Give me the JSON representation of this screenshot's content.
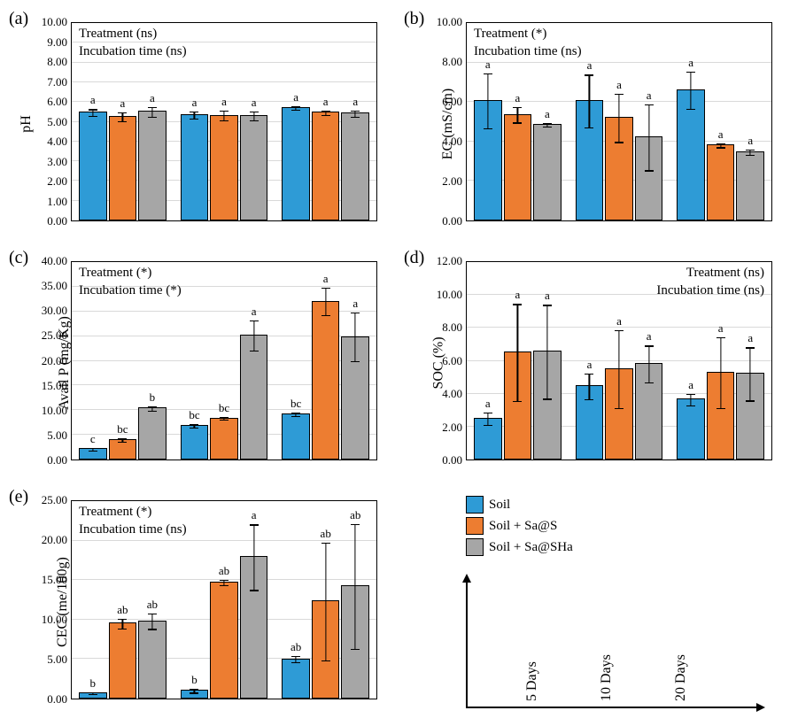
{
  "colors": {
    "soil": "#2e9bd6",
    "sas": "#ed7d31",
    "sasha": "#a6a6a6",
    "grid": "#d9d9d9",
    "bg": "#ffffff"
  },
  "legend": {
    "items": [
      {
        "label": "Soil",
        "color": "#2e9bd6"
      },
      {
        "label": "Soil + Sa@S",
        "color": "#ed7d31"
      },
      {
        "label": "Soil + Sa@SHa",
        "color": "#a6a6a6"
      }
    ],
    "xlabels": [
      "5 Days",
      "10 Days",
      "20 Days"
    ]
  },
  "panels": [
    {
      "id": "a",
      "label": "(a)",
      "ylabel": "pH",
      "ymin": 0,
      "ymax": 10,
      "ystep": 1,
      "decimals": 2,
      "treatment": "Treatment (ns)",
      "incub": "Incubation time (ns)",
      "anno_pos": "left",
      "groups": [
        [
          {
            "v": 5.5,
            "e": 0.18,
            "s": "a",
            "c": "#2e9bd6"
          },
          {
            "v": 5.3,
            "e": 0.22,
            "s": "a",
            "c": "#ed7d31"
          },
          {
            "v": 5.55,
            "e": 0.25,
            "s": "a",
            "c": "#a6a6a6"
          }
        ],
        [
          {
            "v": 5.4,
            "e": 0.18,
            "s": "a",
            "c": "#2e9bd6"
          },
          {
            "v": 5.35,
            "e": 0.25,
            "s": "a",
            "c": "#ed7d31"
          },
          {
            "v": 5.35,
            "e": 0.22,
            "s": "a",
            "c": "#a6a6a6"
          }
        ],
        [
          {
            "v": 5.75,
            "e": 0.1,
            "s": "a",
            "c": "#2e9bd6"
          },
          {
            "v": 5.5,
            "e": 0.12,
            "s": "a",
            "c": "#ed7d31"
          },
          {
            "v": 5.45,
            "e": 0.15,
            "s": "a",
            "c": "#a6a6a6"
          }
        ]
      ]
    },
    {
      "id": "b",
      "label": "(b)",
      "ylabel": "EC (mS/cm)",
      "ymin": 0,
      "ymax": 10,
      "ystep": 2,
      "decimals": 2,
      "treatment": "Treatment (*)",
      "incub": "Incubation time (ns)",
      "anno_pos": "left",
      "groups": [
        [
          {
            "v": 6.1,
            "e": 1.4,
            "s": "a",
            "c": "#2e9bd6"
          },
          {
            "v": 5.4,
            "e": 0.4,
            "s": "a",
            "c": "#ed7d31"
          },
          {
            "v": 4.9,
            "e": 0.1,
            "s": "a",
            "c": "#a6a6a6"
          }
        ],
        [
          {
            "v": 6.1,
            "e": 1.35,
            "s": "a",
            "c": "#2e9bd6"
          },
          {
            "v": 5.25,
            "e": 1.25,
            "s": "a",
            "c": "#ed7d31"
          },
          {
            "v": 4.25,
            "e": 1.7,
            "s": "a",
            "c": "#a6a6a6"
          }
        ],
        [
          {
            "v": 6.65,
            "e": 0.95,
            "s": "a",
            "c": "#2e9bd6"
          },
          {
            "v": 3.85,
            "e": 0.1,
            "s": "a",
            "c": "#ed7d31"
          },
          {
            "v": 3.5,
            "e": 0.15,
            "s": "a",
            "c": "#a6a6a6"
          }
        ]
      ]
    },
    {
      "id": "c",
      "label": "(c)",
      "ylabel": "Avail P (mg/Kg)",
      "ymin": 0,
      "ymax": 40,
      "ystep": 5,
      "decimals": 2,
      "treatment": "Treatment (*)",
      "incub": "Incubation time (*)",
      "anno_pos": "left",
      "groups": [
        [
          {
            "v": 2.3,
            "e": 0.3,
            "s": "c",
            "c": "#2e9bd6"
          },
          {
            "v": 4.2,
            "e": 0.4,
            "s": "bc",
            "c": "#ed7d31"
          },
          {
            "v": 10.5,
            "e": 0.5,
            "s": "b",
            "c": "#a6a6a6"
          }
        ],
        [
          {
            "v": 7.0,
            "e": 0.3,
            "s": "bc",
            "c": "#2e9bd6"
          },
          {
            "v": 8.5,
            "e": 0.3,
            "s": "bc",
            "c": "#ed7d31"
          },
          {
            "v": 25.3,
            "e": 3.1,
            "s": "a",
            "c": "#a6a6a6"
          }
        ],
        [
          {
            "v": 9.3,
            "e": 0.35,
            "s": "bc",
            "c": "#2e9bd6"
          },
          {
            "v": 32.2,
            "e": 2.8,
            "s": "a",
            "c": "#ed7d31"
          },
          {
            "v": 25.0,
            "e": 5.0,
            "s": "a",
            "c": "#a6a6a6"
          }
        ]
      ]
    },
    {
      "id": "d",
      "label": "(d)",
      "ylabel": "SOC (%)",
      "ymin": 0,
      "ymax": 12,
      "ystep": 2,
      "decimals": 2,
      "treatment": "Treatment (ns)",
      "incub": "Incubation time (ns)",
      "anno_pos": "right",
      "groups": [
        [
          {
            "v": 2.55,
            "e": 0.4,
            "s": "a",
            "c": "#2e9bd6"
          },
          {
            "v": 6.55,
            "e": 3.0,
            "s": "a",
            "c": "#ed7d31"
          },
          {
            "v": 6.6,
            "e": 2.9,
            "s": "a",
            "c": "#a6a6a6"
          }
        ],
        [
          {
            "v": 4.5,
            "e": 0.8,
            "s": "a",
            "c": "#2e9bd6"
          },
          {
            "v": 5.55,
            "e": 2.4,
            "s": "a",
            "c": "#ed7d31"
          },
          {
            "v": 5.85,
            "e": 1.15,
            "s": "a",
            "c": "#a6a6a6"
          }
        ],
        [
          {
            "v": 3.7,
            "e": 0.35,
            "s": "a",
            "c": "#2e9bd6"
          },
          {
            "v": 5.35,
            "e": 2.2,
            "s": "a",
            "c": "#ed7d31"
          },
          {
            "v": 5.25,
            "e": 1.65,
            "s": "a",
            "c": "#a6a6a6"
          }
        ]
      ]
    },
    {
      "id": "e",
      "label": "(e)",
      "ylabel": "CEC (me/100g)",
      "ymin": 0,
      "ymax": 25,
      "ystep": 5,
      "decimals": 2,
      "treatment": "Treatment (*)",
      "incub": "Incubation time (ns)",
      "anno_pos": "left",
      "groups": [
        [
          {
            "v": 0.8,
            "e": 0.2,
            "s": "b",
            "c": "#2e9bd6"
          },
          {
            "v": 9.6,
            "e": 0.6,
            "s": "ab",
            "c": "#ed7d31"
          },
          {
            "v": 9.9,
            "e": 1.0,
            "s": "ab",
            "c": "#a6a6a6"
          }
        ],
        [
          {
            "v": 1.1,
            "e": 0.3,
            "s": "b",
            "c": "#2e9bd6"
          },
          {
            "v": 14.8,
            "e": 0.35,
            "s": "ab",
            "c": "#ed7d31"
          },
          {
            "v": 18.0,
            "e": 4.2,
            "s": "a",
            "c": "#a6a6a6"
          }
        ],
        [
          {
            "v": 5.1,
            "e": 0.4,
            "s": "ab",
            "c": "#2e9bd6"
          },
          {
            "v": 12.4,
            "e": 7.6,
            "s": "ab",
            "c": "#ed7d31"
          },
          {
            "v": 14.3,
            "e": 8.0,
            "s": "ab",
            "c": "#a6a6a6"
          }
        ]
      ]
    }
  ]
}
